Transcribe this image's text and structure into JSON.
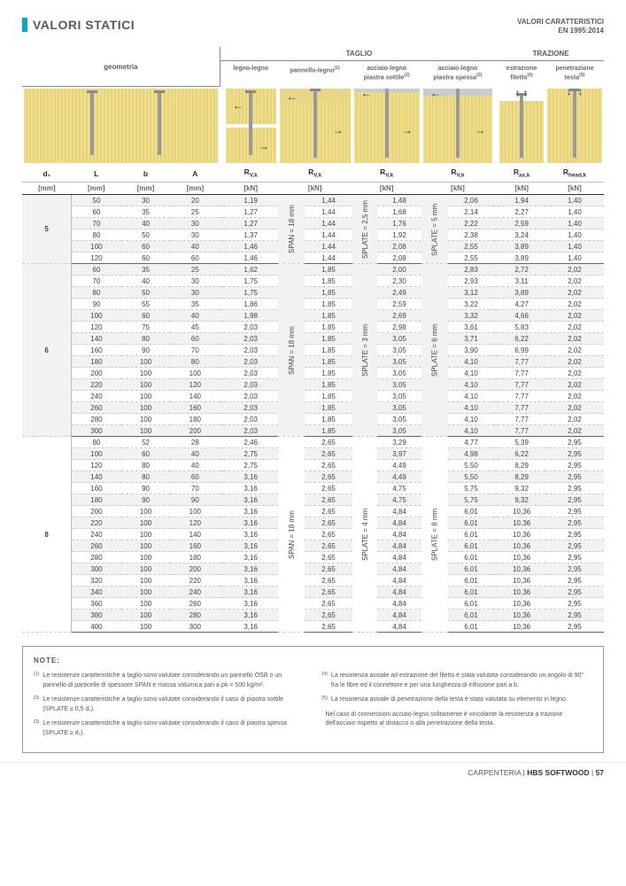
{
  "title": "VALORI STATICI",
  "ref1": "VALORI CARATTERISTICI",
  "ref2": "EN 1995:2014",
  "groups": {
    "geom": "geometria",
    "taglio": "TAGLIO",
    "trazione": "TRAZIONE"
  },
  "cols": {
    "c1": "legno-legno",
    "c2": "pannello-legno",
    "c2s": "(1)",
    "c3": "acciaio-legno\npiastra sottile",
    "c3s": "(2)",
    "c4": "acciaio-legno\npiastra spessa",
    "c4s": "(3)",
    "c5": "estrazione\nfiletto",
    "c5s": "(4)",
    "c6": "penetrazione\ntesta",
    "c6s": "(5)"
  },
  "params": {
    "d1": "d₁",
    "L": "L",
    "b": "b",
    "A": "A",
    "rvk": "R",
    "rvksub": "V,k",
    "rax": "R",
    "raxsub": "ax,k",
    "rhead": "R",
    "rheadsub": "head,k"
  },
  "units": {
    "mm": "[mm]",
    "kn": "[kN]"
  },
  "vlabels": {
    "span18": "SPAN = 18 mm",
    "splate25": "SPLATE = 2,5 mm",
    "splate3": "SPLATE = 3 mm",
    "splate4": "SPLATE = 4 mm",
    "splate5": "SPLATE = 5 mm",
    "splate6": "SPLATE = 6 mm",
    "splate8": "SPLATE = 8 mm"
  },
  "data": [
    {
      "d": "5",
      "rows": [
        {
          "h": 1,
          "L": "50",
          "b": "30",
          "A": "20",
          "c1": "1,19",
          "c2": "1,44",
          "c3": "1,48",
          "c4": "2,06",
          "c5": "1,94",
          "c6": "1,40"
        },
        {
          "L": "60",
          "b": "35",
          "A": "25",
          "c1": "1,27",
          "c2": "1,44",
          "c3": "1,68",
          "c4": "2,14",
          "c5": "2,27",
          "c6": "1,40"
        },
        {
          "h": 1,
          "L": "70",
          "b": "40",
          "A": "30",
          "c1": "1,27",
          "c2": "1,44",
          "c3": "1,76",
          "c4": "2,22",
          "c5": "2,59",
          "c6": "1,40"
        },
        {
          "L": "80",
          "b": "50",
          "A": "30",
          "c1": "1,37",
          "c2": "1,44",
          "c3": "1,92",
          "c4": "2,38",
          "c5": "3,24",
          "c6": "1,40"
        },
        {
          "h": 1,
          "L": "100",
          "b": "60",
          "A": "40",
          "c1": "1,46",
          "c2": "1,44",
          "c3": "2,08",
          "c4": "2,55",
          "c5": "3,89",
          "c6": "1,40"
        },
        {
          "last": 1,
          "L": "120",
          "b": "60",
          "A": "60",
          "c1": "1,46",
          "c2": "1,44",
          "c3": "2,08",
          "c4": "2,55",
          "c5": "3,89",
          "c6": "1,40"
        }
      ],
      "v3": "splate25",
      "v4": "splate5"
    },
    {
      "d": "6",
      "rows": [
        {
          "h": 1,
          "L": "60",
          "b": "35",
          "A": "25",
          "c1": "1,62",
          "c2": "1,85",
          "c3": "2,00",
          "c4": "2,83",
          "c5": "2,72",
          "c6": "2,02"
        },
        {
          "L": "70",
          "b": "40",
          "A": "30",
          "c1": "1,75",
          "c2": "1,85",
          "c3": "2,30",
          "c4": "2,93",
          "c5": "3,11",
          "c6": "2,02"
        },
        {
          "h": 1,
          "L": "80",
          "b": "50",
          "A": "30",
          "c1": "1,75",
          "c2": "1,85",
          "c3": "2,49",
          "c4": "3,12",
          "c5": "3,89",
          "c6": "2,02"
        },
        {
          "L": "90",
          "b": "55",
          "A": "35",
          "c1": "1,86",
          "c2": "1,85",
          "c3": "2,59",
          "c4": "3,22",
          "c5": "4,27",
          "c6": "2,02"
        },
        {
          "h": 1,
          "L": "100",
          "b": "60",
          "A": "40",
          "c1": "1,98",
          "c2": "1,85",
          "c3": "2,69",
          "c4": "3,32",
          "c5": "4,66",
          "c6": "2,02"
        },
        {
          "L": "120",
          "b": "75",
          "A": "45",
          "c1": "2,03",
          "c2": "1,85",
          "c3": "2,98",
          "c4": "3,61",
          "c5": "5,83",
          "c6": "2,02"
        },
        {
          "h": 1,
          "L": "140",
          "b": "80",
          "A": "60",
          "c1": "2,03",
          "c2": "1,85",
          "c3": "3,05",
          "c4": "3,71",
          "c5": "6,22",
          "c6": "2,02"
        },
        {
          "L": "160",
          "b": "90",
          "A": "70",
          "c1": "2,03",
          "c2": "1,85",
          "c3": "3,05",
          "c4": "3,90",
          "c5": "6,99",
          "c6": "2,02"
        },
        {
          "h": 1,
          "L": "180",
          "b": "100",
          "A": "80",
          "c1": "2,03",
          "c2": "1,85",
          "c3": "3,05",
          "c4": "4,10",
          "c5": "7,77",
          "c6": "2,02"
        },
        {
          "L": "200",
          "b": "100",
          "A": "100",
          "c1": "2,03",
          "c2": "1,85",
          "c3": "3,05",
          "c4": "4,10",
          "c5": "7,77",
          "c6": "2,02"
        },
        {
          "h": 1,
          "L": "220",
          "b": "100",
          "A": "120",
          "c1": "2,03",
          "c2": "1,85",
          "c3": "3,05",
          "c4": "4,10",
          "c5": "7,77",
          "c6": "2,02"
        },
        {
          "L": "240",
          "b": "100",
          "A": "140",
          "c1": "2,03",
          "c2": "1,85",
          "c3": "3,05",
          "c4": "4,10",
          "c5": "7,77",
          "c6": "2,02"
        },
        {
          "h": 1,
          "L": "260",
          "b": "100",
          "A": "160",
          "c1": "2,03",
          "c2": "1,85",
          "c3": "3,05",
          "c4": "4,10",
          "c5": "7,77",
          "c6": "2,02"
        },
        {
          "L": "280",
          "b": "100",
          "A": "180",
          "c1": "2,03",
          "c2": "1,85",
          "c3": "3,05",
          "c4": "4,10",
          "c5": "7,77",
          "c6": "2,02"
        },
        {
          "h": 1,
          "last": 1,
          "L": "300",
          "b": "100",
          "A": "200",
          "c1": "2,03",
          "c2": "1,85",
          "c3": "3,05",
          "c4": "4,10",
          "c5": "7,77",
          "c6": "2,02"
        }
      ],
      "v3": "splate3",
      "v4": "splate6"
    },
    {
      "d": "8",
      "rows": [
        {
          "L": "80",
          "b": "52",
          "A": "28",
          "c1": "2,46",
          "c2": "2,65",
          "c3": "3,29",
          "c4": "4,77",
          "c5": "5,39",
          "c6": "2,95"
        },
        {
          "h": 1,
          "L": "100",
          "b": "60",
          "A": "40",
          "c1": "2,75",
          "c2": "2,65",
          "c3": "3,97",
          "c4": "4,98",
          "c5": "6,22",
          "c6": "2,95"
        },
        {
          "L": "120",
          "b": "80",
          "A": "40",
          "c1": "2,75",
          "c2": "2,65",
          "c3": "4,49",
          "c4": "5,50",
          "c5": "8,29",
          "c6": "2,95"
        },
        {
          "h": 1,
          "L": "140",
          "b": "80",
          "A": "60",
          "c1": "3,16",
          "c2": "2,65",
          "c3": "4,49",
          "c4": "5,50",
          "c5": "8,29",
          "c6": "2,95"
        },
        {
          "L": "160",
          "b": "90",
          "A": "70",
          "c1": "3,16",
          "c2": "2,65",
          "c3": "4,75",
          "c4": "5,75",
          "c5": "9,32",
          "c6": "2,95"
        },
        {
          "h": 1,
          "L": "180",
          "b": "90",
          "A": "90",
          "c1": "3,16",
          "c2": "2,65",
          "c3": "4,75",
          "c4": "5,75",
          "c5": "9,32",
          "c6": "2,95"
        },
        {
          "L": "200",
          "b": "100",
          "A": "100",
          "c1": "3,16",
          "c2": "2,65",
          "c3": "4,84",
          "c4": "6,01",
          "c5": "10,36",
          "c6": "2,95"
        },
        {
          "h": 1,
          "L": "220",
          "b": "100",
          "A": "120",
          "c1": "3,16",
          "c2": "2,65",
          "c3": "4,84",
          "c4": "6,01",
          "c5": "10,36",
          "c6": "2,95"
        },
        {
          "L": "240",
          "b": "100",
          "A": "140",
          "c1": "3,16",
          "c2": "2,65",
          "c3": "4,84",
          "c4": "6,01",
          "c5": "10,36",
          "c6": "2,95"
        },
        {
          "h": 1,
          "L": "260",
          "b": "100",
          "A": "160",
          "c1": "3,16",
          "c2": "2,65",
          "c3": "4,84",
          "c4": "6,01",
          "c5": "10,36",
          "c6": "2,95"
        },
        {
          "L": "280",
          "b": "100",
          "A": "180",
          "c1": "3,16",
          "c2": "2,65",
          "c3": "4,84",
          "c4": "6,01",
          "c5": "10,36",
          "c6": "2,95"
        },
        {
          "h": 1,
          "L": "300",
          "b": "100",
          "A": "200",
          "c1": "3,16",
          "c2": "2,65",
          "c3": "4,84",
          "c4": "6,01",
          "c5": "10,36",
          "c6": "2,95"
        },
        {
          "L": "320",
          "b": "100",
          "A": "220",
          "c1": "3,16",
          "c2": "2,65",
          "c3": "4,84",
          "c4": "6,01",
          "c5": "10,36",
          "c6": "2,95"
        },
        {
          "h": 1,
          "L": "340",
          "b": "100",
          "A": "240",
          "c1": "3,16",
          "c2": "2,65",
          "c3": "4,84",
          "c4": "6,01",
          "c5": "10,36",
          "c6": "2,95"
        },
        {
          "L": "360",
          "b": "100",
          "A": "260",
          "c1": "3,16",
          "c2": "2,65",
          "c3": "4,84",
          "c4": "6,01",
          "c5": "10,36",
          "c6": "2,95"
        },
        {
          "h": 1,
          "L": "380",
          "b": "100",
          "A": "280",
          "c1": "3,16",
          "c2": "2,65",
          "c3": "4,84",
          "c4": "6,01",
          "c5": "10,36",
          "c6": "2,95"
        },
        {
          "last": 1,
          "L": "400",
          "b": "100",
          "A": "300",
          "c1": "3,16",
          "c2": "2,65",
          "c3": "4,84",
          "c4": "6,01",
          "c5": "10,36",
          "c6": "2,95"
        }
      ],
      "v3": "splate4",
      "v4": "splate8"
    }
  ],
  "notes": {
    "title": "NOTE:",
    "left": [
      {
        "n": "(1)",
        "t": "Le resistenze caratteristiche a taglio sono valutate considerando un pannello OSB o un pannello di particelle di spessore SPAN e massa volumica pari a ρk = 500 kg/m³."
      },
      {
        "n": "(2)",
        "t": "Le resistenze caratteristiche a taglio sono valutate considerando il caso di piastra sottile (SPLATE ≤ 0,5 d₁)."
      },
      {
        "n": "(3)",
        "t": "Le resistenze caratteristiche a taglio sono valutate considerando il caso di piastra spessa (SPLATE ≥ d₁)."
      }
    ],
    "right": [
      {
        "n": "(4)",
        "t": "La resistenza assiale ad estrazione del filetto è stata valutata considerando un angolo di 90° fra le fibre ed il connettore e per una lunghezza di infissione pari a b."
      },
      {
        "n": "(5)",
        "t": "La resistenza assiale di penetrazione della testa è stata valutata su elemento in legno."
      },
      {
        "n": "",
        "t": "Nel caso di connessioni acciaio-legno solitamente è vincolante la resistenza a trazione dell'acciaio rispetto al distacco o alla penetrazione della testa."
      }
    ]
  },
  "footer": {
    "a": "CARPENTERIA",
    "b": "HBS SOFTWOOD",
    "p": "57"
  }
}
